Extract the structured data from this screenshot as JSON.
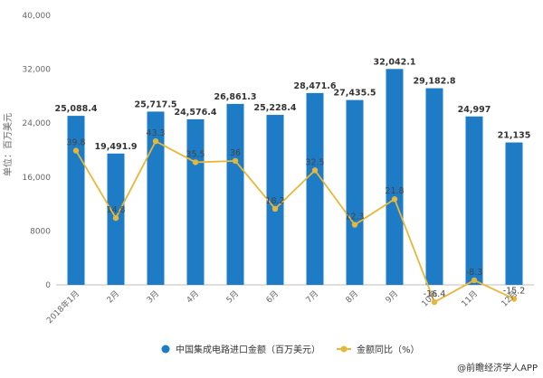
{
  "chart_data": {
    "type": "bar",
    "categories": [
      "2018年1月",
      "2月",
      "3月",
      "4月",
      "5月",
      "6月",
      "7月",
      "8月",
      "9月",
      "10月",
      "11月",
      "12月"
    ],
    "bar_series": {
      "name": "中国集成电路进口金额（百万美元）",
      "values": [
        25088.4,
        19491.9,
        25717.5,
        24576.4,
        26861.3,
        25228.4,
        28471.6,
        27435.5,
        32042.1,
        29182.8,
        24997,
        21135
      ],
      "labels": [
        "25,088.4",
        "19,491.9",
        "25,717.5",
        "24,576.4",
        "26,861.3",
        "25,228.4",
        "28,471.6",
        "27,435.5",
        "32,042.1",
        "29,182.8",
        "24,997",
        "21,135"
      ],
      "color": "#1e7cc6"
    },
    "line_series": {
      "name": "金额同比（%）",
      "values": [
        39.8,
        14.8,
        43.3,
        35.5,
        36,
        18.2,
        32.5,
        12.3,
        21.8,
        -16.4,
        -8.3,
        -15.2
      ],
      "labels": [
        "39.8",
        "14.8",
        "43.3",
        "35.5",
        "36",
        "18.2",
        "32.5",
        "12.3",
        "21.8",
        "-16.4",
        "-8.3",
        "-15.2"
      ],
      "color": "#e7b73a",
      "scale": "plotted on the same visual scale as the bars (unlabeled secondary axis)"
    },
    "ylabel": "单位：百万美元",
    "ylim": [
      0,
      40000
    ],
    "yticks": [
      "0",
      "8000",
      "16,000",
      "24,000",
      "32,000",
      "40,000"
    ],
    "legend_position": "bottom-center",
    "grid": false
  },
  "legend": {
    "bar_label": "中国集成电路进口金额（百万美元）",
    "line_label": "金额同比（%）"
  },
  "credit": "@前瞻经济学人APP"
}
